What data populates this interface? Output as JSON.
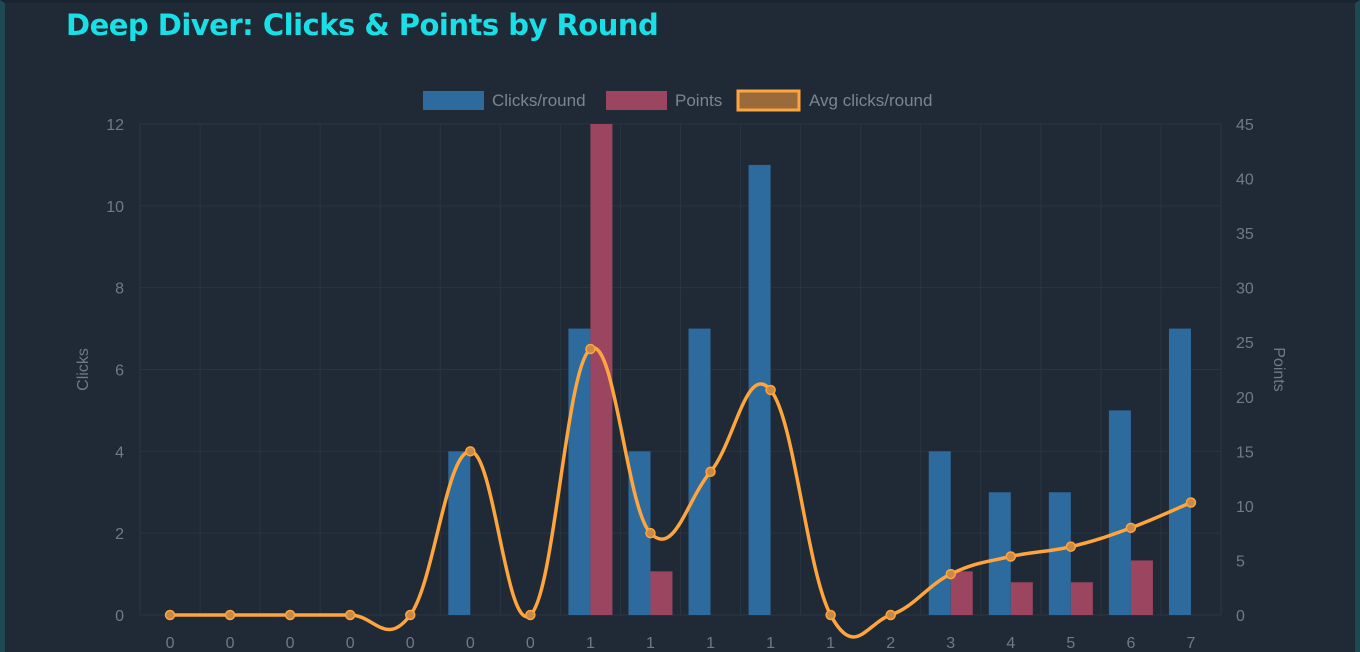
{
  "page": {
    "title": "Deep Diver: Clicks & Points by Round"
  },
  "colors": {
    "clicks": "#2d6a9e",
    "points": "#9b4560",
    "avg": "#ffa53d",
    "avg_pale": "#a9aca6",
    "axis_text": "#717a83",
    "grid": "#2a3540",
    "legend_text": "#7c858e"
  },
  "chart_data": {
    "type": "bar",
    "title": "Deep Diver: Clicks & Points by Round",
    "categories": [
      "0",
      "0",
      "0",
      "0",
      "0",
      "0",
      "0",
      "1",
      "1",
      "1",
      "1",
      "1",
      "2",
      "3",
      "4",
      "5",
      "6",
      "7"
    ],
    "y_left": {
      "label": "Clicks",
      "min": 0,
      "max": 12,
      "step": 2
    },
    "y_right": {
      "label": "Points",
      "min": 0,
      "max": 45,
      "step": 5
    },
    "legend_position": "top-center",
    "grid": true,
    "series": [
      {
        "name": "Clicks/round",
        "type": "bar",
        "axis": "left",
        "values": [
          0,
          0,
          0,
          0,
          0,
          4,
          0,
          7,
          4,
          7,
          11,
          0,
          0,
          4,
          3,
          3,
          5,
          7
        ]
      },
      {
        "name": "Points",
        "type": "bar",
        "axis": "right",
        "values": [
          0,
          0,
          0,
          0,
          0,
          0,
          0,
          45,
          4,
          0,
          0,
          0,
          0,
          4,
          3,
          3,
          5,
          0
        ]
      },
      {
        "name": "Avg clicks/round",
        "type": "line",
        "axis": "left",
        "values": [
          0,
          0,
          0,
          0,
          0,
          4,
          0,
          6.5,
          2,
          3.5,
          5.5,
          0,
          0,
          1,
          1.43,
          1.67,
          2.13,
          2.75
        ]
      }
    ]
  }
}
